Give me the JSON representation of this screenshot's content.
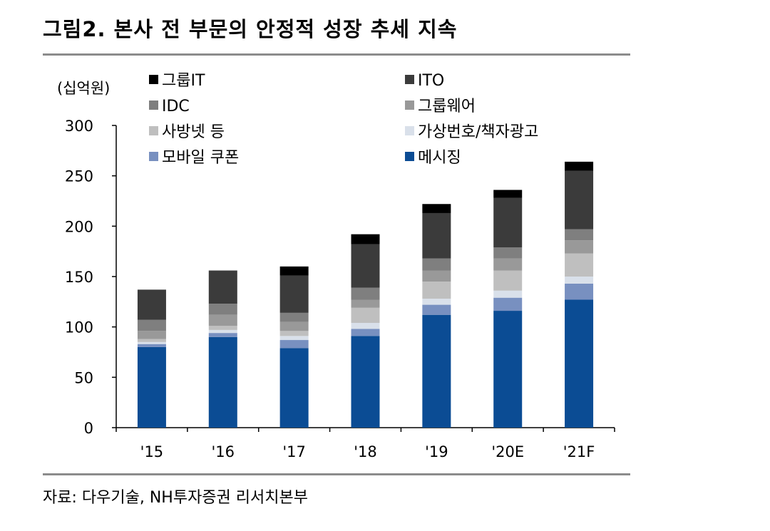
{
  "figure": {
    "title": "그림2. 본사 전 부문의 안정적 성장 추세 지속",
    "source": "자료: 다우기술, NH투자증권 리서치본부"
  },
  "chart_data": {
    "type": "bar",
    "stacked": true,
    "title": "그림2. 본사 전 부문의 안정적 성장 추세 지속",
    "ylabel": "(십억원)",
    "xlabel": "",
    "ylim": [
      0,
      300
    ],
    "yticks": [
      0,
      50,
      100,
      150,
      200,
      250,
      300
    ],
    "grid": false,
    "legend_position": "top",
    "categories": [
      "'15",
      "'16",
      "'17",
      "'18",
      "'19",
      "'20E",
      "'21F"
    ],
    "series": [
      {
        "name": "메시징",
        "color": "#0b4c94",
        "values": [
          80,
          90,
          79,
          91,
          112,
          116,
          127
        ]
      },
      {
        "name": "모바일 쿠폰",
        "color": "#7890c0",
        "values": [
          3,
          4,
          8,
          7,
          10,
          13,
          16
        ]
      },
      {
        "name": "가상번호/책자광고",
        "color": "#d9e0ea",
        "values": [
          2,
          3,
          4,
          6,
          6,
          7,
          7
        ]
      },
      {
        "name": "사방넷 등",
        "color": "#bfbfbf",
        "values": [
          3,
          4,
          5,
          15,
          17,
          20,
          23
        ]
      },
      {
        "name": "그룹웨어",
        "color": "#999999",
        "values": [
          8,
          11,
          9,
          8,
          11,
          12,
          13
        ]
      },
      {
        "name": "IDC",
        "color": "#7f7f7f",
        "values": [
          11,
          11,
          9,
          12,
          12,
          11,
          11
        ]
      },
      {
        "name": "ITO",
        "color": "#3b3b3b",
        "values": [
          30,
          33,
          37,
          43,
          45,
          49,
          58
        ]
      },
      {
        "name": "그룹IT",
        "color": "#000000",
        "values": [
          0,
          0,
          9,
          10,
          9,
          8,
          9
        ]
      }
    ],
    "legend_order": [
      "그룹IT",
      "ITO",
      "IDC",
      "그룹웨어",
      "사방넷 등",
      "가상번호/책자광고",
      "모바일 쿠폰",
      "메시징"
    ]
  }
}
